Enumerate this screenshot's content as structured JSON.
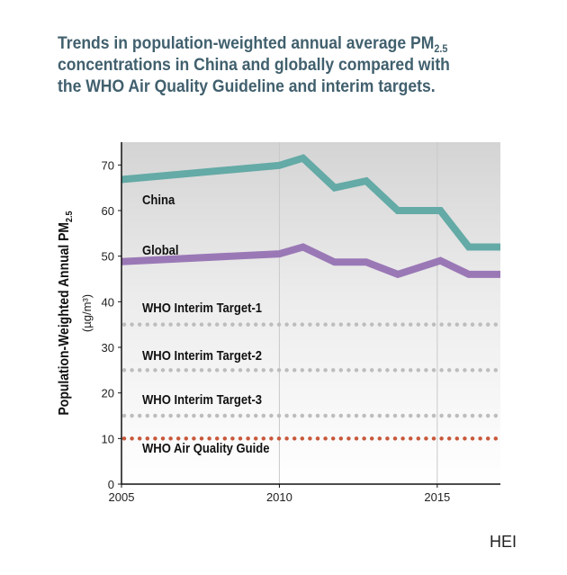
{
  "title": {
    "line1": "Trends in population-weighted annual average PM",
    "line1_sub": "2.5",
    "line2": "concentrations in China and globally compared with",
    "line3": "the WHO Air Quality Guideline and interim targets."
  },
  "source": "HEI",
  "chart_data": {
    "type": "line",
    "ylabel": "Population-Weighted Annual PM",
    "ylabel_sub": "2.5",
    "yunit": "(µg/m³)",
    "xlim": [
      2005,
      2017
    ],
    "ylim": [
      0,
      75
    ],
    "xticks": [
      2005,
      2010,
      2015
    ],
    "yticks": [
      0,
      10,
      20,
      30,
      40,
      50,
      60,
      70
    ],
    "grid": "vertical",
    "series": [
      {
        "name": "China",
        "color": "#64aaa6",
        "x": [
          2005,
          2010,
          2010.75,
          2011.75,
          2012.75,
          2013.75,
          2015.1,
          2016,
          2017
        ],
        "y": [
          66.8,
          69.9,
          71.5,
          65,
          66.5,
          60,
          60,
          52,
          52
        ]
      },
      {
        "name": "Global",
        "color": "#9a78b6",
        "x": [
          2005,
          2010,
          2010.75,
          2011.75,
          2012.75,
          2013.75,
          2015.1,
          2016,
          2017
        ],
        "y": [
          48.8,
          50.5,
          52,
          48.7,
          48.7,
          46,
          49,
          46,
          46
        ]
      }
    ],
    "reference_lines": [
      {
        "label": "WHO Interim Target-1",
        "value": 35,
        "color": "#bdbdbd"
      },
      {
        "label": "WHO Interim Target-2",
        "value": 25,
        "color": "#bdbdbd"
      },
      {
        "label": "WHO Interim Target-3",
        "value": 15,
        "color": "#bdbdbd"
      },
      {
        "label": "WHO Air Quality Guide",
        "value": 10,
        "color": "#c8583a"
      }
    ]
  }
}
